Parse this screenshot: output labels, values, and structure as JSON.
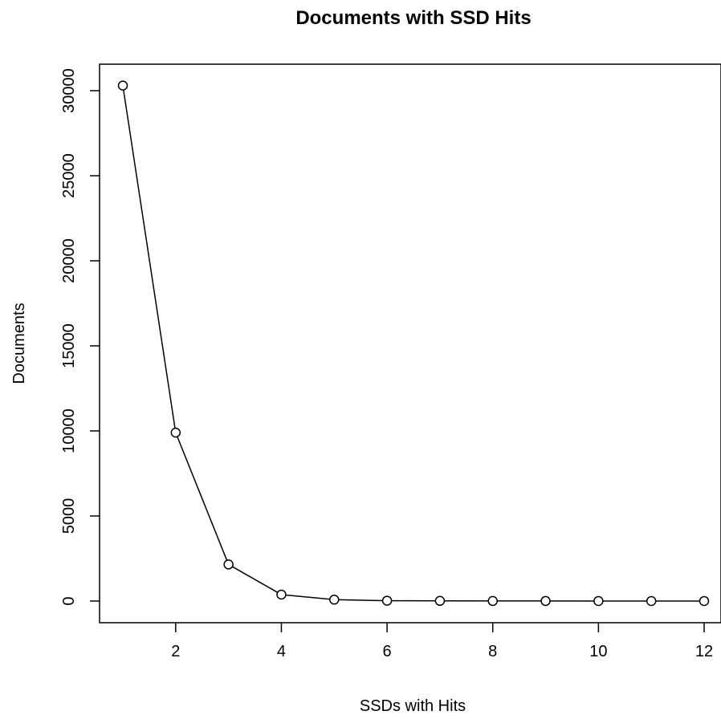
{
  "chart_data": {
    "type": "line",
    "title": "Documents with SSD Hits",
    "xlabel": "SSDs with Hits",
    "ylabel": "Documents",
    "x": [
      1,
      2,
      3,
      4,
      5,
      6,
      7,
      8,
      9,
      10,
      11,
      12
    ],
    "series": [
      {
        "values": [
          30300,
          9900,
          2150,
          380,
          80,
          20,
          10,
          5,
          3,
          2,
          1,
          1
        ]
      }
    ],
    "xlim": [
      0.6,
      12.3
    ],
    "ylim": [
      -1200,
      31500
    ],
    "xticks": [
      2,
      4,
      6,
      8,
      10,
      12
    ],
    "yticks": [
      0,
      5000,
      10000,
      15000,
      20000,
      25000,
      30000
    ],
    "grid": false,
    "marker": "open-circle",
    "line_color": "#000000"
  }
}
